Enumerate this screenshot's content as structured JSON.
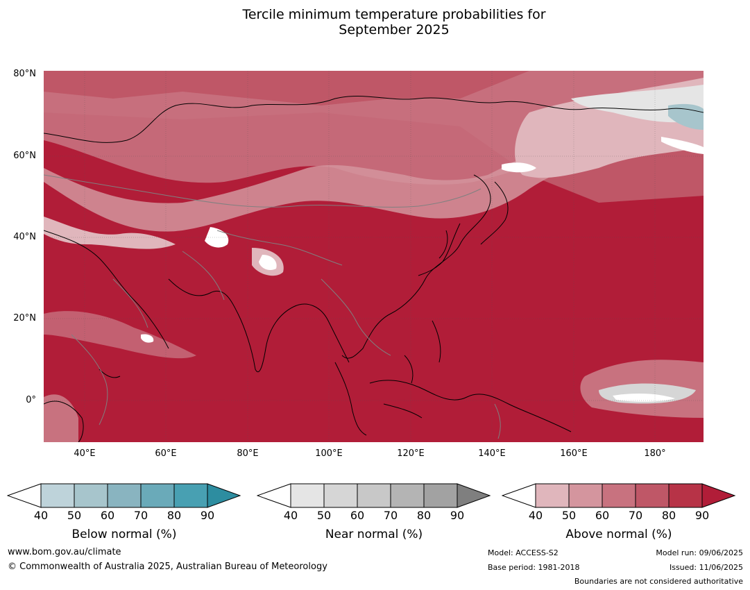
{
  "title_line1": "Tercile minimum temperature probabilities for",
  "title_line2": "September 2025",
  "y_axis_labels": [
    "80°N",
    "60°N",
    "40°N",
    "20°N",
    "0°"
  ],
  "x_axis_labels": [
    "40°E",
    "60°E",
    "80°E",
    "100°E",
    "120°E",
    "140°E",
    "160°E",
    "180°"
  ],
  "colorbars": [
    {
      "label": "Below normal (%)",
      "ticks": [
        "40",
        "50",
        "60",
        "70",
        "80",
        "90"
      ],
      "colors": [
        "#ffffff",
        "#bed3da",
        "#a7c5cc",
        "#89b4c0",
        "#6aaab9",
        "#48a0b2",
        "#2d8da0"
      ]
    },
    {
      "label": "Near normal (%)",
      "ticks": [
        "40",
        "50",
        "60",
        "70",
        "80",
        "90"
      ],
      "colors": [
        "#ffffff",
        "#e5e5e5",
        "#d6d6d6",
        "#c8c8c8",
        "#b4b4b4",
        "#a2a2a2",
        "#7f7f7f"
      ]
    },
    {
      "label": "Above normal (%)",
      "ticks": [
        "40",
        "50",
        "60",
        "70",
        "80",
        "90"
      ],
      "colors": [
        "#ffffff",
        "#e0b6bc",
        "#d4959e",
        "#c8727f",
        "#bf5767",
        "#b73347",
        "#b11d38"
      ]
    }
  ],
  "footer": {
    "url": "www.bom.gov.au/climate",
    "copyright": "© Commonwealth of Australia 2025, Australian Bureau of Meteorology",
    "model": "Model: ACCESS-S2",
    "base_period": "Base period: 1981-2018",
    "model_run": "Model run: 09/06/2025",
    "issued": "Issued: 11/06/2025",
    "disclaimer": "Boundaries are not considered authoritative"
  }
}
